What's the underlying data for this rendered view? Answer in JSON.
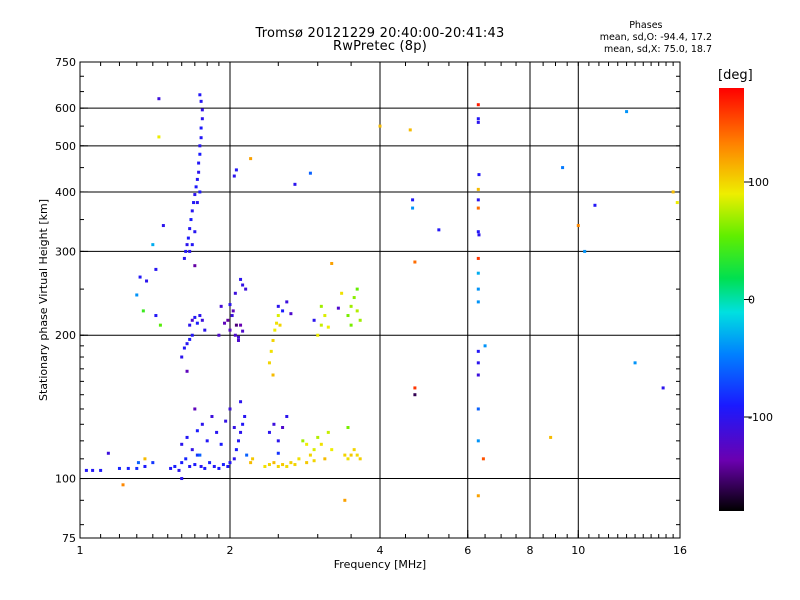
{
  "header": {
    "title": "Tromsø 20121229 20:40:00-20:41:43",
    "subtitle": "RwPretec (8p)"
  },
  "phase_box": {
    "heading": "Phases",
    "line1": "mean, sd,O: -94.4, 17.2",
    "line2": "mean, sd,X:  75.0, 18.7"
  },
  "colorbar": {
    "unit": "[deg]",
    "range": [
      -180,
      180
    ],
    "ticks": [
      {
        "value": 100,
        "label": "100"
      },
      {
        "value": 0,
        "label": "0"
      },
      {
        "value": -100,
        "label": "-100"
      }
    ]
  },
  "chart_data": {
    "type": "scatter",
    "title": "Tromsø 20121229 20:40:00-20:41:43",
    "subtitle": "RwPretec (8p)",
    "xlabel": "Frequency [MHz]",
    "ylabel": "Stationary phase Virtual Height [km]",
    "x_scale": "log",
    "y_scale": "log",
    "xlim": [
      1,
      16
    ],
    "ylim": [
      75,
      750
    ],
    "x_ticks": [
      {
        "value": 1,
        "label": "1"
      },
      {
        "value": 2,
        "label": "2"
      },
      {
        "value": 4,
        "label": "4"
      },
      {
        "value": 6,
        "label": "6"
      },
      {
        "value": 8,
        "label": "8"
      },
      {
        "value": 10,
        "label": "10"
      },
      {
        "value": 16,
        "label": "16"
      }
    ],
    "y_ticks": [
      {
        "value": 75,
        "label": "75"
      },
      {
        "value": 100,
        "label": "100"
      },
      {
        "value": 200,
        "label": "200"
      },
      {
        "value": 300,
        "label": "300"
      },
      {
        "value": 400,
        "label": "400"
      },
      {
        "value": 500,
        "label": "500"
      },
      {
        "value": 600,
        "label": "600"
      },
      {
        "value": 750,
        "label": "750"
      }
    ],
    "grid_x": [
      2,
      4,
      6,
      8,
      10
    ],
    "grid_y": [
      100,
      200,
      300,
      400,
      500,
      600
    ],
    "color_encoding": "phase [deg]",
    "points": [
      {
        "f": 1.03,
        "h": 104,
        "p": -95
      },
      {
        "f": 1.06,
        "h": 104,
        "p": -95
      },
      {
        "f": 1.1,
        "h": 104,
        "p": -92
      },
      {
        "f": 1.14,
        "h": 113,
        "p": -110
      },
      {
        "f": 1.2,
        "h": 105,
        "p": -85
      },
      {
        "f": 1.25,
        "h": 105,
        "p": -88
      },
      {
        "f": 1.3,
        "h": 105,
        "p": -82
      },
      {
        "f": 1.35,
        "h": 106,
        "p": -92
      },
      {
        "f": 1.4,
        "h": 108,
        "p": -78
      },
      {
        "f": 1.31,
        "h": 108,
        "p": -60
      },
      {
        "f": 1.22,
        "h": 97,
        "p": 130
      },
      {
        "f": 1.35,
        "h": 110,
        "p": 110
      },
      {
        "f": 1.32,
        "h": 265,
        "p": -95
      },
      {
        "f": 1.36,
        "h": 260,
        "p": -100
      },
      {
        "f": 1.42,
        "h": 275,
        "p": -98
      },
      {
        "f": 1.3,
        "h": 243,
        "p": -40
      },
      {
        "f": 1.34,
        "h": 225,
        "p": 40
      },
      {
        "f": 1.42,
        "h": 220,
        "p": -95
      },
      {
        "f": 1.45,
        "h": 210,
        "p": 50
      },
      {
        "f": 1.44,
        "h": 628,
        "p": -110
      },
      {
        "f": 1.44,
        "h": 522,
        "p": 90
      },
      {
        "f": 1.47,
        "h": 340,
        "p": -100
      },
      {
        "f": 1.4,
        "h": 310,
        "p": -30
      },
      {
        "f": 1.52,
        "h": 105,
        "p": -95
      },
      {
        "f": 1.55,
        "h": 106,
        "p": -88
      },
      {
        "f": 1.58,
        "h": 104,
        "p": -100
      },
      {
        "f": 1.6,
        "h": 108,
        "p": -90
      },
      {
        "f": 1.63,
        "h": 110,
        "p": -85
      },
      {
        "f": 1.66,
        "h": 106,
        "p": -95
      },
      {
        "f": 1.7,
        "h": 107,
        "p": -92
      },
      {
        "f": 1.72,
        "h": 112,
        "p": -80
      },
      {
        "f": 1.75,
        "h": 106,
        "p": -98
      },
      {
        "f": 1.78,
        "h": 105,
        "p": -90
      },
      {
        "f": 1.82,
        "h": 108,
        "p": -86
      },
      {
        "f": 1.86,
        "h": 106,
        "p": -94
      },
      {
        "f": 1.9,
        "h": 105,
        "p": -90
      },
      {
        "f": 1.94,
        "h": 107,
        "p": -88
      },
      {
        "f": 1.98,
        "h": 106,
        "p": -92
      },
      {
        "f": 1.6,
        "h": 118,
        "p": -100
      },
      {
        "f": 1.64,
        "h": 122,
        "p": -95
      },
      {
        "f": 1.68,
        "h": 115,
        "p": -105
      },
      {
        "f": 1.72,
        "h": 126,
        "p": -90
      },
      {
        "f": 1.76,
        "h": 130,
        "p": -100
      },
      {
        "f": 1.8,
        "h": 120,
        "p": -95
      },
      {
        "f": 1.84,
        "h": 135,
        "p": -110
      },
      {
        "f": 1.88,
        "h": 125,
        "p": -98
      },
      {
        "f": 1.92,
        "h": 118,
        "p": -90
      },
      {
        "f": 1.96,
        "h": 132,
        "p": -105
      },
      {
        "f": 1.7,
        "h": 140,
        "p": -130
      },
      {
        "f": 1.74,
        "h": 112,
        "p": -60
      },
      {
        "f": 1.6,
        "h": 100,
        "p": -100
      },
      {
        "f": 1.6,
        "h": 180,
        "p": -100
      },
      {
        "f": 1.62,
        "h": 188,
        "p": -95
      },
      {
        "f": 1.64,
        "h": 192,
        "p": -98
      },
      {
        "f": 1.66,
        "h": 196,
        "p": -92
      },
      {
        "f": 1.68,
        "h": 200,
        "p": -95
      },
      {
        "f": 1.66,
        "h": 210,
        "p": -100
      },
      {
        "f": 1.68,
        "h": 215,
        "p": -120
      },
      {
        "f": 1.7,
        "h": 218,
        "p": -95
      },
      {
        "f": 1.72,
        "h": 212,
        "p": -90
      },
      {
        "f": 1.74,
        "h": 220,
        "p": -100
      },
      {
        "f": 1.76,
        "h": 215,
        "p": -110
      },
      {
        "f": 1.78,
        "h": 205,
        "p": -100
      },
      {
        "f": 1.64,
        "h": 168,
        "p": -130
      },
      {
        "f": 1.7,
        "h": 280,
        "p": -140
      },
      {
        "f": 1.62,
        "h": 290,
        "p": -98
      },
      {
        "f": 1.63,
        "h": 300,
        "p": -95
      },
      {
        "f": 1.64,
        "h": 310,
        "p": -100
      },
      {
        "f": 1.65,
        "h": 320,
        "p": -92
      },
      {
        "f": 1.66,
        "h": 335,
        "p": -96
      },
      {
        "f": 1.67,
        "h": 350,
        "p": -90
      },
      {
        "f": 1.68,
        "h": 365,
        "p": -98
      },
      {
        "f": 1.69,
        "h": 380,
        "p": -95
      },
      {
        "f": 1.7,
        "h": 395,
        "p": -100
      },
      {
        "f": 1.71,
        "h": 410,
        "p": -92
      },
      {
        "f": 1.72,
        "h": 425,
        "p": -96
      },
      {
        "f": 1.73,
        "h": 440,
        "p": -100
      },
      {
        "f": 1.73,
        "h": 460,
        "p": -95
      },
      {
        "f": 1.74,
        "h": 480,
        "p": -90
      },
      {
        "f": 1.74,
        "h": 500,
        "p": -98
      },
      {
        "f": 1.75,
        "h": 520,
        "p": -95
      },
      {
        "f": 1.75,
        "h": 545,
        "p": -92
      },
      {
        "f": 1.76,
        "h": 570,
        "p": -100
      },
      {
        "f": 1.76,
        "h": 595,
        "p": -105
      },
      {
        "f": 1.75,
        "h": 620,
        "p": -98
      },
      {
        "f": 1.74,
        "h": 640,
        "p": -95
      },
      {
        "f": 1.66,
        "h": 300,
        "p": -100
      },
      {
        "f": 1.68,
        "h": 310,
        "p": -95
      },
      {
        "f": 1.7,
        "h": 330,
        "p": -98
      },
      {
        "f": 1.72,
        "h": 380,
        "p": -100
      },
      {
        "f": 1.74,
        "h": 400,
        "p": -92
      },
      {
        "f": 1.9,
        "h": 200,
        "p": -120
      },
      {
        "f": 1.95,
        "h": 212,
        "p": -130
      },
      {
        "f": 2.0,
        "h": 205,
        "p": -125
      },
      {
        "f": 2.02,
        "h": 220,
        "p": -110
      },
      {
        "f": 2.05,
        "h": 200,
        "p": -120
      },
      {
        "f": 2.08,
        "h": 198,
        "p": -115
      },
      {
        "f": 2.1,
        "h": 210,
        "p": -135
      },
      {
        "f": 2.12,
        "h": 204,
        "p": -120
      },
      {
        "f": 2.0,
        "h": 232,
        "p": -100
      },
      {
        "f": 2.05,
        "h": 245,
        "p": -110
      },
      {
        "f": 2.1,
        "h": 262,
        "p": -100
      },
      {
        "f": 2.12,
        "h": 255,
        "p": -105
      },
      {
        "f": 2.15,
        "h": 250,
        "p": -110
      },
      {
        "f": 1.98,
        "h": 215,
        "p": -140
      },
      {
        "f": 2.03,
        "h": 225,
        "p": -130
      },
      {
        "f": 2.06,
        "h": 210,
        "p": -150
      },
      {
        "f": 2.08,
        "h": 195,
        "p": -120
      },
      {
        "f": 1.92,
        "h": 230,
        "p": -115
      },
      {
        "f": 2.04,
        "h": 432,
        "p": -100
      },
      {
        "f": 2.06,
        "h": 445,
        "p": -95
      },
      {
        "f": 2.0,
        "h": 108,
        "p": -95
      },
      {
        "f": 2.04,
        "h": 110,
        "p": -100
      },
      {
        "f": 2.06,
        "h": 115,
        "p": -90
      },
      {
        "f": 2.08,
        "h": 120,
        "p": -95
      },
      {
        "f": 2.1,
        "h": 125,
        "p": -100
      },
      {
        "f": 2.12,
        "h": 130,
        "p": -95
      },
      {
        "f": 2.14,
        "h": 135,
        "p": -98
      },
      {
        "f": 2.0,
        "h": 140,
        "p": -110
      },
      {
        "f": 2.04,
        "h": 128,
        "p": -105
      },
      {
        "f": 2.1,
        "h": 145,
        "p": -100
      },
      {
        "f": 2.16,
        "h": 112,
        "p": -60
      },
      {
        "f": 2.2,
        "h": 108,
        "p": 110
      },
      {
        "f": 2.22,
        "h": 110,
        "p": 105
      },
      {
        "f": 2.2,
        "h": 470,
        "p": 120
      },
      {
        "f": 2.35,
        "h": 106,
        "p": 95
      },
      {
        "f": 2.4,
        "h": 107,
        "p": 100
      },
      {
        "f": 2.45,
        "h": 108,
        "p": 110
      },
      {
        "f": 2.5,
        "h": 106,
        "p": 100
      },
      {
        "f": 2.55,
        "h": 107,
        "p": 105
      },
      {
        "f": 2.6,
        "h": 106,
        "p": 98
      },
      {
        "f": 2.65,
        "h": 108,
        "p": 102
      },
      {
        "f": 2.7,
        "h": 107,
        "p": 100
      },
      {
        "f": 2.75,
        "h": 110,
        "p": 95
      },
      {
        "f": 2.4,
        "h": 125,
        "p": -100
      },
      {
        "f": 2.45,
        "h": 130,
        "p": -110
      },
      {
        "f": 2.5,
        "h": 120,
        "p": -100
      },
      {
        "f": 2.55,
        "h": 128,
        "p": -120
      },
      {
        "f": 2.6,
        "h": 135,
        "p": -100
      },
      {
        "f": 2.5,
        "h": 113,
        "p": -80
      },
      {
        "f": 2.4,
        "h": 175,
        "p": 100
      },
      {
        "f": 2.42,
        "h": 185,
        "p": 95
      },
      {
        "f": 2.44,
        "h": 195,
        "p": 100
      },
      {
        "f": 2.46,
        "h": 205,
        "p": 90
      },
      {
        "f": 2.48,
        "h": 212,
        "p": 95
      },
      {
        "f": 2.5,
        "h": 220,
        "p": 85
      },
      {
        "f": 2.44,
        "h": 165,
        "p": 110
      },
      {
        "f": 2.52,
        "h": 210,
        "p": 100
      },
      {
        "f": 2.5,
        "h": 230,
        "p": -100
      },
      {
        "f": 2.55,
        "h": 225,
        "p": -90
      },
      {
        "f": 2.6,
        "h": 235,
        "p": -110
      },
      {
        "f": 2.65,
        "h": 222,
        "p": -120
      },
      {
        "f": 2.7,
        "h": 415,
        "p": -100
      },
      {
        "f": 2.9,
        "h": 438,
        "p": -60
      },
      {
        "f": 2.8,
        "h": 120,
        "p": 70
      },
      {
        "f": 2.85,
        "h": 118,
        "p": 90
      },
      {
        "f": 2.9,
        "h": 112,
        "p": 100
      },
      {
        "f": 2.95,
        "h": 115,
        "p": 85
      },
      {
        "f": 3.0,
        "h": 122,
        "p": 75
      },
      {
        "f": 3.05,
        "h": 118,
        "p": 95
      },
      {
        "f": 3.1,
        "h": 110,
        "p": 110
      },
      {
        "f": 3.15,
        "h": 125,
        "p": 80
      },
      {
        "f": 3.2,
        "h": 115,
        "p": 90
      },
      {
        "f": 2.85,
        "h": 108,
        "p": 105
      },
      {
        "f": 2.95,
        "h": 109,
        "p": 100
      },
      {
        "f": 3.0,
        "h": 200,
        "p": 90
      },
      {
        "f": 3.05,
        "h": 210,
        "p": 80
      },
      {
        "f": 3.1,
        "h": 220,
        "p": 85
      },
      {
        "f": 3.15,
        "h": 208,
        "p": 90
      },
      {
        "f": 3.05,
        "h": 230,
        "p": 70
      },
      {
        "f": 2.95,
        "h": 215,
        "p": -100
      },
      {
        "f": 3.2,
        "h": 283,
        "p": 120
      },
      {
        "f": 3.3,
        "h": 228,
        "p": -120
      },
      {
        "f": 3.35,
        "h": 245,
        "p": 95
      },
      {
        "f": 3.4,
        "h": 112,
        "p": 100
      },
      {
        "f": 3.45,
        "h": 110,
        "p": 95
      },
      {
        "f": 3.5,
        "h": 112,
        "p": 105
      },
      {
        "f": 3.55,
        "h": 115,
        "p": 100
      },
      {
        "f": 3.6,
        "h": 112,
        "p": 98
      },
      {
        "f": 3.65,
        "h": 110,
        "p": 102
      },
      {
        "f": 3.4,
        "h": 90,
        "p": 120
      },
      {
        "f": 3.45,
        "h": 128,
        "p": 60
      },
      {
        "f": 3.45,
        "h": 220,
        "p": 60
      },
      {
        "f": 3.5,
        "h": 230,
        "p": 70
      },
      {
        "f": 3.55,
        "h": 240,
        "p": 65
      },
      {
        "f": 3.6,
        "h": 225,
        "p": 75
      },
      {
        "f": 3.65,
        "h": 215,
        "p": 70
      },
      {
        "f": 3.5,
        "h": 210,
        "p": 60
      },
      {
        "f": 3.6,
        "h": 250,
        "p": 55
      },
      {
        "f": 4.0,
        "h": 550,
        "p": 110
      },
      {
        "f": 4.6,
        "h": 540,
        "p": 110
      },
      {
        "f": 4.65,
        "h": 385,
        "p": -95
      },
      {
        "f": 4.65,
        "h": 370,
        "p": -40
      },
      {
        "f": 4.7,
        "h": 285,
        "p": 140
      },
      {
        "f": 4.7,
        "h": 155,
        "p": 160
      },
      {
        "f": 4.7,
        "h": 150,
        "p": -160
      },
      {
        "f": 5.25,
        "h": 333,
        "p": -95
      },
      {
        "f": 6.3,
        "h": 610,
        "p": 170
      },
      {
        "f": 6.3,
        "h": 570,
        "p": -95
      },
      {
        "f": 6.3,
        "h": 560,
        "p": -100
      },
      {
        "f": 6.32,
        "h": 435,
        "p": -95
      },
      {
        "f": 6.3,
        "h": 405,
        "p": 110
      },
      {
        "f": 6.3,
        "h": 385,
        "p": -100
      },
      {
        "f": 6.3,
        "h": 370,
        "p": 140
      },
      {
        "f": 6.3,
        "h": 330,
        "p": -95
      },
      {
        "f": 6.32,
        "h": 325,
        "p": -100
      },
      {
        "f": 6.3,
        "h": 290,
        "p": 160
      },
      {
        "f": 6.3,
        "h": 270,
        "p": -30
      },
      {
        "f": 6.3,
        "h": 250,
        "p": -40
      },
      {
        "f": 6.3,
        "h": 235,
        "p": -40
      },
      {
        "f": 6.3,
        "h": 185,
        "p": -95
      },
      {
        "f": 6.3,
        "h": 175,
        "p": -100
      },
      {
        "f": 6.3,
        "h": 165,
        "p": -110
      },
      {
        "f": 6.3,
        "h": 140,
        "p": -60
      },
      {
        "f": 6.3,
        "h": 120,
        "p": -40
      },
      {
        "f": 6.3,
        "h": 92,
        "p": 120
      },
      {
        "f": 6.45,
        "h": 110,
        "p": 150
      },
      {
        "f": 6.5,
        "h": 190,
        "p": -40
      },
      {
        "f": 8.8,
        "h": 122,
        "p": 110
      },
      {
        "f": 9.3,
        "h": 450,
        "p": -50
      },
      {
        "f": 10.0,
        "h": 340,
        "p": 130
      },
      {
        "f": 10.3,
        "h": 300,
        "p": -40
      },
      {
        "f": 10.8,
        "h": 375,
        "p": -95
      },
      {
        "f": 12.5,
        "h": 590,
        "p": -40
      },
      {
        "f": 13.0,
        "h": 175,
        "p": -40
      },
      {
        "f": 14.8,
        "h": 155,
        "p": -100
      },
      {
        "f": 15.5,
        "h": 400,
        "p": 110
      },
      {
        "f": 15.8,
        "h": 380,
        "p": 90
      }
    ]
  }
}
